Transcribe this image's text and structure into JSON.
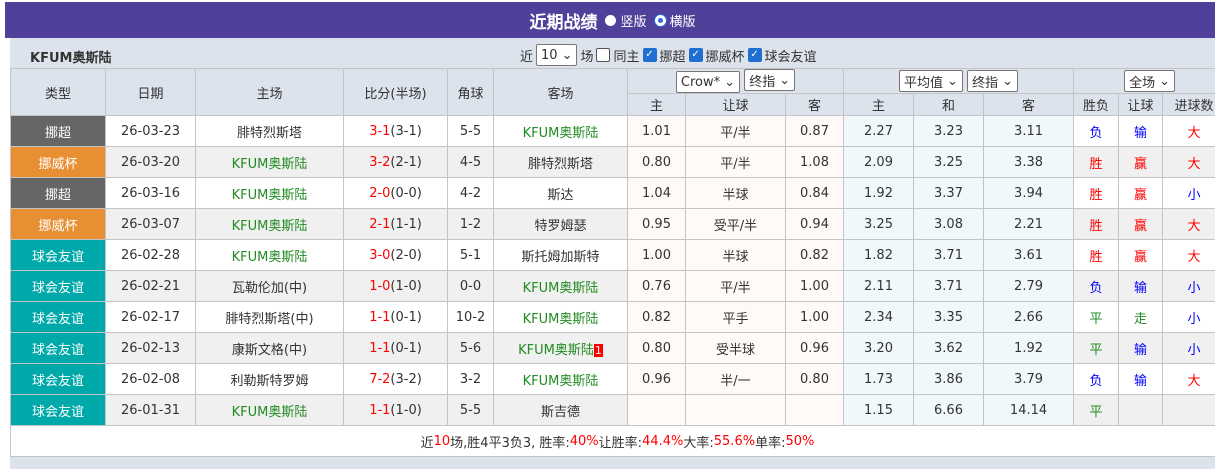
{
  "title": "近期战绩",
  "view_options": [
    {
      "label": "竖版",
      "selected": false
    },
    {
      "label": "横版",
      "selected": true
    }
  ],
  "team": "KFUM奥斯陆",
  "filters": {
    "prefix": "近",
    "count": "10",
    "suffix": "场",
    "checks": [
      {
        "label": "同主",
        "checked": false
      },
      {
        "label": "挪超",
        "checked": true
      },
      {
        "label": "挪威杯",
        "checked": true
      },
      {
        "label": "球会友谊",
        "checked": true
      }
    ]
  },
  "headers": {
    "type": "类型",
    "date": "日期",
    "home": "主场",
    "score": "比分(半场)",
    "corner": "角球",
    "away": "客场",
    "company": "Crow*",
    "odds_type": "终指",
    "avg": "平均值",
    "avg_type": "终指",
    "period": "全场",
    "sub": [
      "主",
      "让球",
      "客",
      "主",
      "和",
      "客",
      "胜负",
      "让球",
      "进球数"
    ]
  },
  "colors": {
    "title_bg": "#51409a",
    "header_bg": "#dce3ec",
    "team_green": "#228b22",
    "score_red": "#ff0000",
    "挪超": "#666666",
    "挪威杯": "#e88f33",
    "球会友谊": "#00a9a9"
  },
  "rows": [
    {
      "type": "挪超",
      "date": "26-03-23",
      "home": "腓特烈斯塔",
      "score": "3-1",
      "half": "(3-1)",
      "corner": "5-5",
      "away": "KFUM奥斯陆",
      "oh": "1.01",
      "hc": "平/半",
      "oa": "0.87",
      "ah": "2.27",
      "ad": "3.23",
      "aa": "3.11",
      "res": "负",
      "hres": "输",
      "ou": "大"
    },
    {
      "type": "挪威杯",
      "date": "26-03-20",
      "home": "KFUM奥斯陆",
      "score": "3-2",
      "half": "(2-1)",
      "corner": "4-5",
      "away": "腓特烈斯塔",
      "oh": "0.80",
      "hc": "平/半",
      "oa": "1.08",
      "ah": "2.09",
      "ad": "3.25",
      "aa": "3.38",
      "res": "胜",
      "hres": "赢",
      "ou": "大"
    },
    {
      "type": "挪超",
      "date": "26-03-16",
      "home": "KFUM奥斯陆",
      "score": "2-0",
      "half": "(0-0)",
      "corner": "4-2",
      "away": "斯达",
      "oh": "1.04",
      "hc": "半球",
      "oa": "0.84",
      "ah": "1.92",
      "ad": "3.37",
      "aa": "3.94",
      "res": "胜",
      "hres": "赢",
      "ou": "小"
    },
    {
      "type": "挪威杯",
      "date": "26-03-07",
      "home": "KFUM奥斯陆",
      "score": "2-1",
      "half": "(1-1)",
      "corner": "1-2",
      "away": "特罗姆瑟",
      "oh": "0.95",
      "hc": "受平/半",
      "oa": "0.94",
      "ah": "3.25",
      "ad": "3.08",
      "aa": "2.21",
      "res": "胜",
      "hres": "赢",
      "ou": "大"
    },
    {
      "type": "球会友谊",
      "date": "26-02-28",
      "home": "KFUM奥斯陆",
      "score": "3-0",
      "half": "(2-0)",
      "corner": "5-1",
      "away": "斯托姆加斯特",
      "oh": "1.00",
      "hc": "半球",
      "oa": "0.82",
      "ah": "1.82",
      "ad": "3.71",
      "aa": "3.61",
      "res": "胜",
      "hres": "赢",
      "ou": "大"
    },
    {
      "type": "球会友谊",
      "date": "26-02-21",
      "home": "瓦勒伦加(中)",
      "score": "1-0",
      "half": "(1-0)",
      "corner": "0-0",
      "away": "KFUM奥斯陆",
      "oh": "0.76",
      "hc": "平/半",
      "oa": "1.00",
      "ah": "2.11",
      "ad": "3.71",
      "aa": "2.79",
      "res": "负",
      "hres": "输",
      "ou": "小"
    },
    {
      "type": "球会友谊",
      "date": "26-02-17",
      "home": "腓特烈斯塔(中)",
      "score": "1-1",
      "half": "(0-1)",
      "corner": "10-2",
      "away": "KFUM奥斯陆",
      "oh": "0.82",
      "hc": "平手",
      "oa": "1.00",
      "ah": "2.34",
      "ad": "3.35",
      "aa": "2.66",
      "res": "平",
      "hres": "走",
      "ou": "小"
    },
    {
      "type": "球会友谊",
      "date": "26-02-13",
      "home": "康斯文格(中)",
      "score": "1-1",
      "half": "(0-1)",
      "corner": "5-6",
      "away": "KFUM奥斯陆",
      "away_badge": "1",
      "oh": "0.80",
      "hc": "受半球",
      "oa": "0.96",
      "ah": "3.20",
      "ad": "3.62",
      "aa": "1.92",
      "res": "平",
      "hres": "输",
      "ou": "小"
    },
    {
      "type": "球会友谊",
      "date": "26-02-08",
      "home": "利勒斯特罗姆",
      "score": "7-2",
      "half": "(3-2)",
      "corner": "3-2",
      "away": "KFUM奥斯陆",
      "oh": "0.96",
      "hc": "半/一",
      "oa": "0.80",
      "ah": "1.73",
      "ad": "3.86",
      "aa": "3.79",
      "res": "负",
      "hres": "输",
      "ou": "大"
    },
    {
      "type": "球会友谊",
      "date": "26-01-31",
      "home": "KFUM奥斯陆",
      "score": "1-1",
      "half": "(1-0)",
      "corner": "5-5",
      "away": "斯吉德",
      "oh": "",
      "hc": "",
      "oa": "",
      "ah": "1.15",
      "ad": "6.66",
      "aa": "14.14",
      "res": "平",
      "hres": "",
      "ou": ""
    }
  ],
  "summary": [
    {
      "t": "近",
      "c": ""
    },
    {
      "t": "10",
      "c": "red"
    },
    {
      "t": "场,胜4平3负3, 胜率:",
      "c": ""
    },
    {
      "t": "40%",
      "c": "red"
    },
    {
      "t": " 让胜率:",
      "c": ""
    },
    {
      "t": "44.4%",
      "c": "red"
    },
    {
      "t": " 大率:",
      "c": ""
    },
    {
      "t": "55.6%",
      "c": "red"
    },
    {
      "t": " 单率:",
      "c": ""
    },
    {
      "t": "50%",
      "c": "red"
    }
  ]
}
